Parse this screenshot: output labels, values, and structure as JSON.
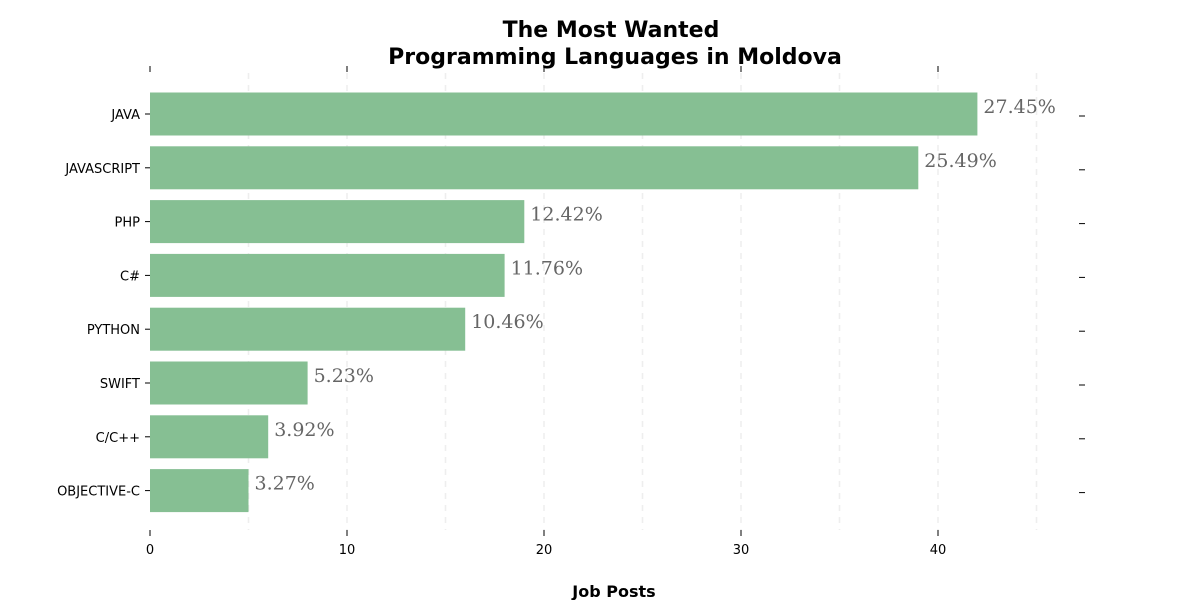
{
  "chart_data": {
    "type": "bar",
    "orientation": "horizontal",
    "title": [
      "The Most Wanted",
      "Programming Languages in Moldova"
    ],
    "xlabel": "Job Posts",
    "ylabel": "",
    "categories": [
      "JAVA",
      "JAVASCRIPT",
      "PHP",
      "C#",
      "PYTHON",
      "SWIFT",
      "C/C++",
      "OBJECTIVE-C"
    ],
    "values": [
      42,
      39,
      19,
      18,
      16,
      8,
      6,
      5
    ],
    "value_labels": [
      "27.45%",
      "25.49%",
      "12.42%",
      "11.76%",
      "10.46%",
      "5.23%",
      "3.92%",
      "3.27%"
    ],
    "xlim": [
      0,
      47.5
    ],
    "xticks": [
      0,
      10,
      20,
      30,
      40
    ],
    "xtick_labels": [
      "0",
      "10",
      "20",
      "30",
      "40"
    ],
    "grid": "vertical dashed, every 5",
    "bar_color": "#86bf93",
    "value_label_color": "#666666"
  }
}
